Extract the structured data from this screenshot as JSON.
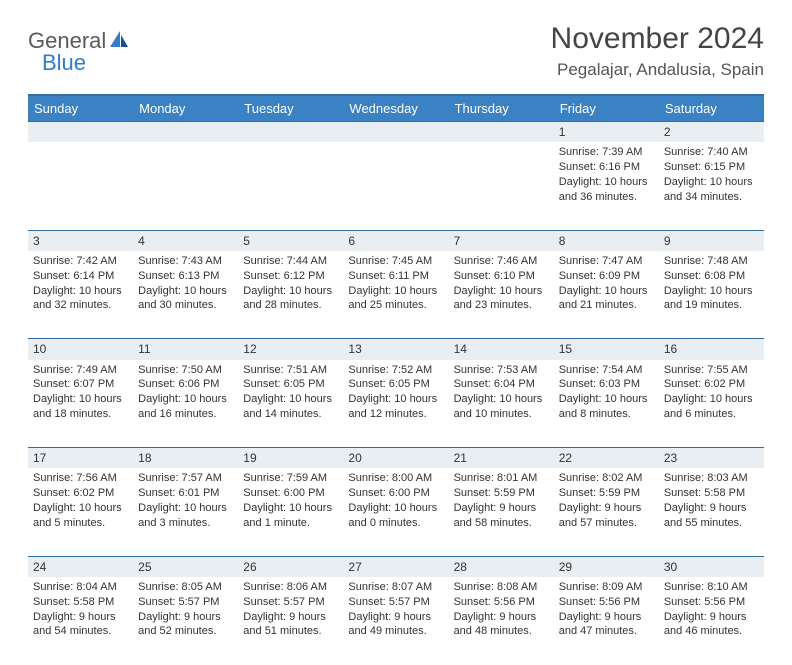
{
  "logo": {
    "general": "General",
    "blue": "Blue"
  },
  "title": "November 2024",
  "location": "Pegalajar, Andalusia, Spain",
  "days": [
    "Sunday",
    "Monday",
    "Tuesday",
    "Wednesday",
    "Thursday",
    "Friday",
    "Saturday"
  ],
  "colors": {
    "header_bg": "#3a82c4",
    "header_border": "#356d9e",
    "daynum_bg": "#e9eef3",
    "logo_blue": "#2e7cd6"
  },
  "weeks": [
    [
      {
        "num": "",
        "sunrise": "",
        "sunset": "",
        "daylight": ""
      },
      {
        "num": "",
        "sunrise": "",
        "sunset": "",
        "daylight": ""
      },
      {
        "num": "",
        "sunrise": "",
        "sunset": "",
        "daylight": ""
      },
      {
        "num": "",
        "sunrise": "",
        "sunset": "",
        "daylight": ""
      },
      {
        "num": "",
        "sunrise": "",
        "sunset": "",
        "daylight": ""
      },
      {
        "num": "1",
        "sunrise": "Sunrise: 7:39 AM",
        "sunset": "Sunset: 6:16 PM",
        "daylight": "Daylight: 10 hours and 36 minutes."
      },
      {
        "num": "2",
        "sunrise": "Sunrise: 7:40 AM",
        "sunset": "Sunset: 6:15 PM",
        "daylight": "Daylight: 10 hours and 34 minutes."
      }
    ],
    [
      {
        "num": "3",
        "sunrise": "Sunrise: 7:42 AM",
        "sunset": "Sunset: 6:14 PM",
        "daylight": "Daylight: 10 hours and 32 minutes."
      },
      {
        "num": "4",
        "sunrise": "Sunrise: 7:43 AM",
        "sunset": "Sunset: 6:13 PM",
        "daylight": "Daylight: 10 hours and 30 minutes."
      },
      {
        "num": "5",
        "sunrise": "Sunrise: 7:44 AM",
        "sunset": "Sunset: 6:12 PM",
        "daylight": "Daylight: 10 hours and 28 minutes."
      },
      {
        "num": "6",
        "sunrise": "Sunrise: 7:45 AM",
        "sunset": "Sunset: 6:11 PM",
        "daylight": "Daylight: 10 hours and 25 minutes."
      },
      {
        "num": "7",
        "sunrise": "Sunrise: 7:46 AM",
        "sunset": "Sunset: 6:10 PM",
        "daylight": "Daylight: 10 hours and 23 minutes."
      },
      {
        "num": "8",
        "sunrise": "Sunrise: 7:47 AM",
        "sunset": "Sunset: 6:09 PM",
        "daylight": "Daylight: 10 hours and 21 minutes."
      },
      {
        "num": "9",
        "sunrise": "Sunrise: 7:48 AM",
        "sunset": "Sunset: 6:08 PM",
        "daylight": "Daylight: 10 hours and 19 minutes."
      }
    ],
    [
      {
        "num": "10",
        "sunrise": "Sunrise: 7:49 AM",
        "sunset": "Sunset: 6:07 PM",
        "daylight": "Daylight: 10 hours and 18 minutes."
      },
      {
        "num": "11",
        "sunrise": "Sunrise: 7:50 AM",
        "sunset": "Sunset: 6:06 PM",
        "daylight": "Daylight: 10 hours and 16 minutes."
      },
      {
        "num": "12",
        "sunrise": "Sunrise: 7:51 AM",
        "sunset": "Sunset: 6:05 PM",
        "daylight": "Daylight: 10 hours and 14 minutes."
      },
      {
        "num": "13",
        "sunrise": "Sunrise: 7:52 AM",
        "sunset": "Sunset: 6:05 PM",
        "daylight": "Daylight: 10 hours and 12 minutes."
      },
      {
        "num": "14",
        "sunrise": "Sunrise: 7:53 AM",
        "sunset": "Sunset: 6:04 PM",
        "daylight": "Daylight: 10 hours and 10 minutes."
      },
      {
        "num": "15",
        "sunrise": "Sunrise: 7:54 AM",
        "sunset": "Sunset: 6:03 PM",
        "daylight": "Daylight: 10 hours and 8 minutes."
      },
      {
        "num": "16",
        "sunrise": "Sunrise: 7:55 AM",
        "sunset": "Sunset: 6:02 PM",
        "daylight": "Daylight: 10 hours and 6 minutes."
      }
    ],
    [
      {
        "num": "17",
        "sunrise": "Sunrise: 7:56 AM",
        "sunset": "Sunset: 6:02 PM",
        "daylight": "Daylight: 10 hours and 5 minutes."
      },
      {
        "num": "18",
        "sunrise": "Sunrise: 7:57 AM",
        "sunset": "Sunset: 6:01 PM",
        "daylight": "Daylight: 10 hours and 3 minutes."
      },
      {
        "num": "19",
        "sunrise": "Sunrise: 7:59 AM",
        "sunset": "Sunset: 6:00 PM",
        "daylight": "Daylight: 10 hours and 1 minute."
      },
      {
        "num": "20",
        "sunrise": "Sunrise: 8:00 AM",
        "sunset": "Sunset: 6:00 PM",
        "daylight": "Daylight: 10 hours and 0 minutes."
      },
      {
        "num": "21",
        "sunrise": "Sunrise: 8:01 AM",
        "sunset": "Sunset: 5:59 PM",
        "daylight": "Daylight: 9 hours and 58 minutes."
      },
      {
        "num": "22",
        "sunrise": "Sunrise: 8:02 AM",
        "sunset": "Sunset: 5:59 PM",
        "daylight": "Daylight: 9 hours and 57 minutes."
      },
      {
        "num": "23",
        "sunrise": "Sunrise: 8:03 AM",
        "sunset": "Sunset: 5:58 PM",
        "daylight": "Daylight: 9 hours and 55 minutes."
      }
    ],
    [
      {
        "num": "24",
        "sunrise": "Sunrise: 8:04 AM",
        "sunset": "Sunset: 5:58 PM",
        "daylight": "Daylight: 9 hours and 54 minutes."
      },
      {
        "num": "25",
        "sunrise": "Sunrise: 8:05 AM",
        "sunset": "Sunset: 5:57 PM",
        "daylight": "Daylight: 9 hours and 52 minutes."
      },
      {
        "num": "26",
        "sunrise": "Sunrise: 8:06 AM",
        "sunset": "Sunset: 5:57 PM",
        "daylight": "Daylight: 9 hours and 51 minutes."
      },
      {
        "num": "27",
        "sunrise": "Sunrise: 8:07 AM",
        "sunset": "Sunset: 5:57 PM",
        "daylight": "Daylight: 9 hours and 49 minutes."
      },
      {
        "num": "28",
        "sunrise": "Sunrise: 8:08 AM",
        "sunset": "Sunset: 5:56 PM",
        "daylight": "Daylight: 9 hours and 48 minutes."
      },
      {
        "num": "29",
        "sunrise": "Sunrise: 8:09 AM",
        "sunset": "Sunset: 5:56 PM",
        "daylight": "Daylight: 9 hours and 47 minutes."
      },
      {
        "num": "30",
        "sunrise": "Sunrise: 8:10 AM",
        "sunset": "Sunset: 5:56 PM",
        "daylight": "Daylight: 9 hours and 46 minutes."
      }
    ]
  ]
}
